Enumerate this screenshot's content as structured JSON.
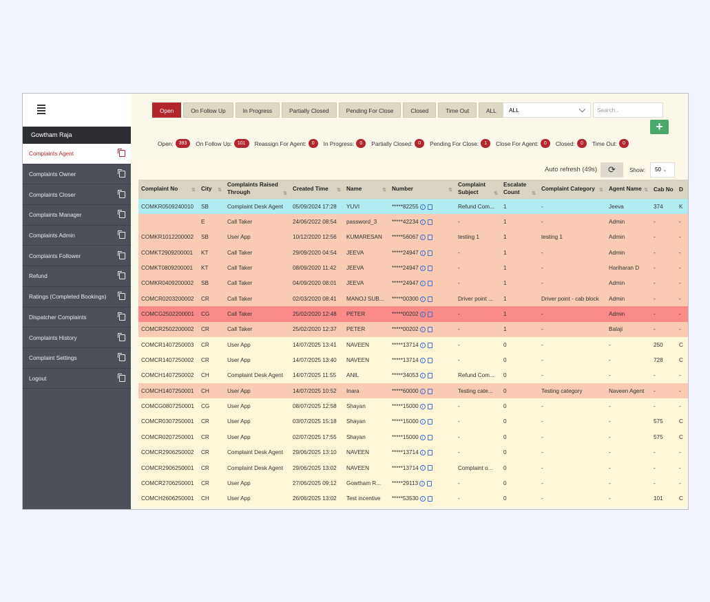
{
  "sidebar": {
    "user": "Gowtham Raja",
    "items": [
      {
        "label": "Complaints Agent",
        "icon": "clipboard-icon",
        "active": true
      },
      {
        "label": "Complaints Owner",
        "icon": "clipboard-icon"
      },
      {
        "label": "Complaints Closer",
        "icon": "clipboard-icon"
      },
      {
        "label": "Complaints Manager",
        "icon": "clipboard-icon"
      },
      {
        "label": "Complaints Admin",
        "icon": "clipboard-icon"
      },
      {
        "label": "Complaints Follower",
        "icon": "clipboard-icon"
      },
      {
        "label": "Refund",
        "icon": "clipboard-icon"
      },
      {
        "label": "Ratings (Completed Bookings)",
        "icon": "book-icon"
      },
      {
        "label": "Dispatcher Complaints",
        "icon": "clipboard-icon"
      },
      {
        "label": "Complaints History",
        "icon": "document-icon"
      },
      {
        "label": "Complaint Settings",
        "icon": "sliders-icon"
      },
      {
        "label": "Logout",
        "icon": "logout-icon"
      }
    ]
  },
  "tabs": [
    "Open",
    "On Follow Up",
    "In Progress",
    "Partially Closed",
    "Pending For Close",
    "Closed",
    "Time Out",
    "ALL"
  ],
  "filter_select": "ALL",
  "search_placeholder": "Search..",
  "add_label": "+",
  "counts": [
    {
      "label": "Open:",
      "value": "393"
    },
    {
      "label": "On Follow Up:",
      "value": "101"
    },
    {
      "label": "Reassign For Agent:",
      "value": "0"
    },
    {
      "label": "In Progress:",
      "value": "0"
    },
    {
      "label": "Partially Closed:",
      "value": "0"
    },
    {
      "label": "Pending For Close:",
      "value": "1"
    },
    {
      "label": "Close For Agent:",
      "value": "0"
    },
    {
      "label": "Closed:",
      "value": "0"
    },
    {
      "label": "Time Out:",
      "value": "0"
    }
  ],
  "toolbar": {
    "auto_refresh": "Auto refresh (49s)",
    "refresh_icon": "refresh-icon",
    "show_label": "Show:",
    "show_value": "50"
  },
  "table": {
    "columns": [
      "Complaint No",
      "City",
      "Complaints Raised Through",
      "Created Time",
      "Name",
      "Number",
      "Complaint Subject",
      "Escalate Count",
      "Complaint Category",
      "Agent Name",
      "Cab No",
      "D"
    ],
    "rows": [
      {
        "style": "cyan",
        "cells": [
          "COMKR0509240010",
          "SB",
          "Complaint Desk Agent",
          "05/09/2024 17:28",
          "YUVI",
          "*****82255",
          "Refund Com...",
          "1",
          "-",
          "Jeeva",
          "374",
          "K"
        ]
      },
      {
        "style": "orange",
        "cells": [
          "",
          "E",
          "Call Taker",
          "24/06/2022 08:54",
          "password_3",
          "*****42234",
          "-",
          "1",
          "-",
          "Admin",
          "-",
          "-"
        ]
      },
      {
        "style": "orange",
        "cells": [
          "COMKR1012200002",
          "SB",
          "User App",
          "10/12/2020 12:56",
          "KUMARESAN",
          "*****56067",
          "testing 1",
          "1",
          "testing 1",
          "Admin",
          "-",
          "-"
        ]
      },
      {
        "style": "orange",
        "cells": [
          "COMKT2909200001",
          "KT",
          "Call Taker",
          "29/09/2020 04:54",
          "JEEVA",
          "*****24947",
          "-",
          "1",
          "-",
          "Admin",
          "-",
          "-"
        ]
      },
      {
        "style": "orange",
        "cells": [
          "COMKT0809200001",
          "KT",
          "Call Taker",
          "08/09/2020 11:42",
          "JEEVA",
          "*****24947",
          "-",
          "1",
          "-",
          "Hariharan D",
          "-",
          "-"
        ]
      },
      {
        "style": "orange",
        "cells": [
          "COMKR0409200002",
          "SB",
          "Call Taker",
          "04/09/2020 08:01",
          "JEEVA",
          "*****24947",
          "-",
          "1",
          "-",
          "Admin",
          "-",
          "-"
        ]
      },
      {
        "style": "orange",
        "cells": [
          "COMCR0203200002",
          "CR",
          "Call Taker",
          "02/03/2020 08:41",
          "MANOJ SUB...",
          "*****00300",
          "Driver point ...",
          "1",
          "Driver point - cab block",
          "Admin",
          "-",
          "-"
        ]
      },
      {
        "style": "red",
        "cells": [
          "COMCG2502200001",
          "CG",
          "Call Taker",
          "25/02/2020 12:48",
          "PETER",
          "*****00202",
          "-",
          "1",
          "-",
          "Admin",
          "-",
          "-"
        ]
      },
      {
        "style": "orange",
        "cells": [
          "COMCR2502200002",
          "CR",
          "Call Taker",
          "25/02/2020 12:37",
          "PETER",
          "*****00202",
          "-",
          "1",
          "-",
          "Balaji",
          "-",
          "-"
        ]
      },
      {
        "style": "cream",
        "cells": [
          "COMCR1407250003",
          "CR",
          "User App",
          "14/07/2025 13:41",
          "NAVEEN",
          "*****13714",
          "-",
          "0",
          "-",
          "-",
          "250",
          "C"
        ]
      },
      {
        "style": "cream",
        "cells": [
          "COMCR1407250002",
          "CR",
          "User App",
          "14/07/2025 13:40",
          "NAVEEN",
          "*****13714",
          "-",
          "0",
          "-",
          "-",
          "728",
          "C"
        ]
      },
      {
        "style": "cream",
        "cells": [
          "COMCH1407250002",
          "CH",
          "Complaint Desk Agent",
          "14/07/2025 11:55",
          "ANIL",
          "*****34053",
          "Refund Com...",
          "0",
          "-",
          "-",
          "-",
          "-"
        ]
      },
      {
        "style": "orange",
        "cells": [
          "COMCH1407250001",
          "CH",
          "User App",
          "14/07/2025 10:52",
          "Inara",
          "*****60000",
          "Testing cate...",
          "0",
          "Testing category",
          "Naveen Agent",
          "-",
          "-"
        ]
      },
      {
        "style": "cream",
        "cells": [
          "COMCG0807250001",
          "CG",
          "User App",
          "08/07/2025 12:58",
          "Shayan",
          "*****15000",
          "-",
          "0",
          "-",
          "-",
          "-",
          "-"
        ]
      },
      {
        "style": "cream",
        "cells": [
          "COMCR0307250001",
          "CR",
          "User App",
          "03/07/2025 15:18",
          "Shayan",
          "*****15000",
          "-",
          "0",
          "-",
          "-",
          "575",
          "C"
        ]
      },
      {
        "style": "cream",
        "cells": [
          "COMCR0207250001",
          "CR",
          "User App",
          "02/07/2025 17:55",
          "Shayan",
          "*****15000",
          "-",
          "0",
          "-",
          "-",
          "575",
          "C"
        ]
      },
      {
        "style": "cream",
        "cells": [
          "COMCR2906250002",
          "CR",
          "Complaint Desk Agent",
          "29/06/2025 13:10",
          "NAVEEN",
          "*****13714",
          "-",
          "0",
          "-",
          "-",
          "-",
          "-"
        ]
      },
      {
        "style": "cream",
        "cells": [
          "COMCR2906250001",
          "CR",
          "Complaint Desk Agent",
          "29/06/2025 13:02",
          "NAVEEN",
          "*****13714",
          "Complaint o...",
          "0",
          "-",
          "-",
          "-",
          "-"
        ]
      },
      {
        "style": "cream",
        "cells": [
          "COMCR2706250001",
          "CR",
          "User App",
          "27/06/2025 09:12",
          "Gowtham R...",
          "*****29113",
          "-",
          "0",
          "-",
          "-",
          "-",
          "-"
        ]
      },
      {
        "style": "cream",
        "cells": [
          "COMCH2606250001",
          "CH",
          "User App",
          "26/06/2025 13:02",
          "Test incentive",
          "*****53530",
          "-",
          "0",
          "-",
          "-",
          "101",
          "C"
        ]
      }
    ]
  }
}
